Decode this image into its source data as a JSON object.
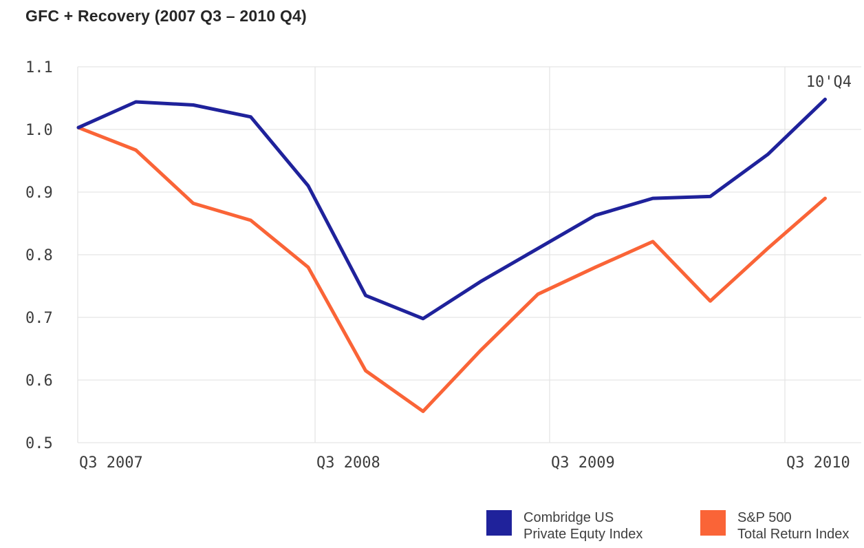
{
  "title": "GFC + Recovery (2007 Q3 – 2010 Q4)",
  "chart_data": {
    "type": "line",
    "categories": [
      "Q3 2007",
      "Q4 2007",
      "Q1 2008",
      "Q2 2008",
      "Q3 2008",
      "Q4 2008",
      "Q1 2009",
      "Q2 2009",
      "Q3 2009",
      "Q4 2009",
      "Q1 2010",
      "Q2 2010",
      "Q3 2010",
      "Q4 2010"
    ],
    "series": [
      {
        "name": "Combridge US Private Equty Index",
        "color": "#1F229B",
        "values": [
          1.003,
          1.044,
          1.039,
          1.02,
          0.91,
          0.735,
          0.698,
          0.757,
          0.81,
          0.863,
          0.89,
          0.893,
          0.96,
          1.048
        ]
      },
      {
        "name": "S&P 500 Total Return Index",
        "color": "#FA6437",
        "values": [
          1.003,
          0.967,
          0.882,
          0.855,
          0.78,
          0.615,
          0.55,
          0.647,
          0.737,
          0.78,
          0.821,
          0.726,
          0.81,
          0.89
        ]
      }
    ],
    "ylim": [
      0.5,
      1.1
    ],
    "yticks": [
      "1.1",
      "1.0",
      "0.9",
      "0.8",
      "0.7",
      "0.6",
      "0.5"
    ],
    "xticks": [
      "Q3 2007",
      "Q3 2008",
      "Q3 2009",
      "Q3 2010"
    ],
    "annotation": "10'Q4",
    "grid": "horizontal+vertical",
    "legend_position": "bottom-right"
  },
  "legend": {
    "entries": [
      {
        "line1": "Combridge US",
        "line2": "Private Equty Index",
        "color": "#1F229B"
      },
      {
        "line1": "S&P 500",
        "line2": "Total Return Index",
        "color": "#FA6437"
      }
    ]
  },
  "colors": {
    "grid": "#E5E5E5",
    "tick_text": "#3C3C3C",
    "title_text": "#262626"
  }
}
